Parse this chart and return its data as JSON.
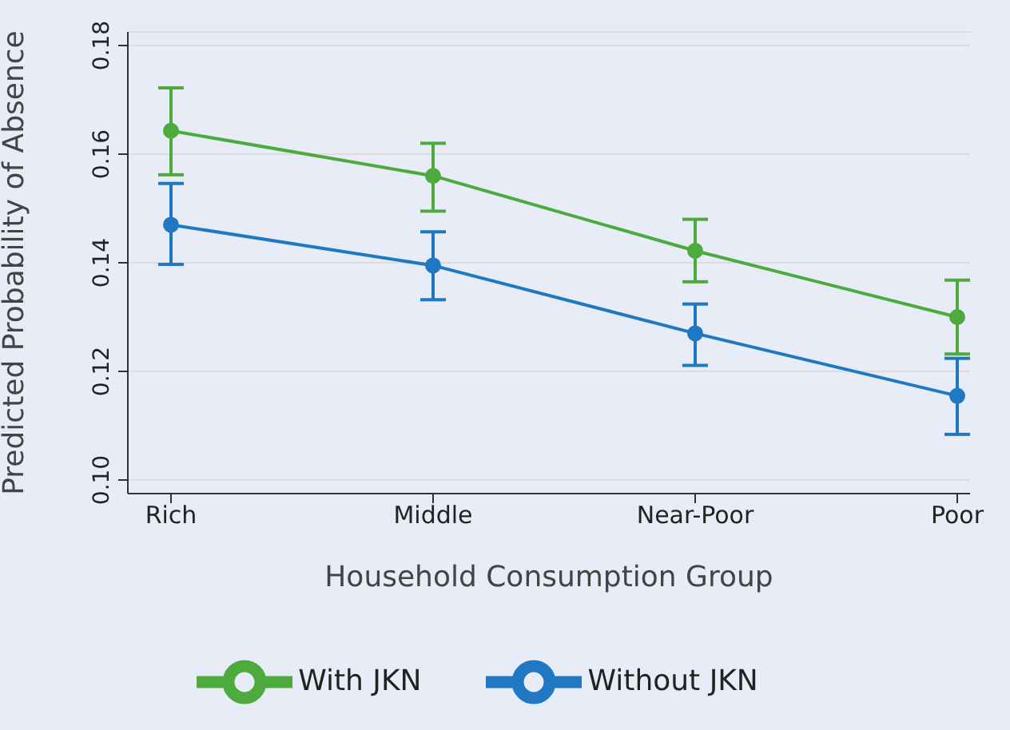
{
  "chart_data": {
    "type": "line",
    "xlabel": "Household Consumption Group",
    "ylabel": "Predicted Probability of Absence",
    "categories": [
      "Rich",
      "Middle",
      "Near-Poor",
      "Poor"
    ],
    "series": [
      {
        "name": "Without JKN",
        "color": "#1f78c1",
        "values": [
          0.147,
          0.1395,
          0.127,
          0.1155
        ],
        "errors": [
          [
            0.1397,
            0.1546
          ],
          [
            0.1332,
            0.1457
          ],
          [
            0.1211,
            0.1324
          ],
          [
            0.1084,
            0.1224
          ]
        ]
      },
      {
        "name": "With JKN",
        "color": "#4dab3e",
        "values": [
          0.1643,
          0.156,
          0.1422,
          0.13
        ],
        "errors": [
          [
            0.1562,
            0.1722
          ],
          [
            0.1495,
            0.162
          ],
          [
            0.1365,
            0.148
          ],
          [
            0.1232,
            0.1368
          ]
        ]
      }
    ],
    "ylim": [
      0.0975,
      0.1825
    ],
    "yticks": [
      {
        "value": 0.1,
        "label": "0.10"
      },
      {
        "value": 0.12,
        "label": "0.12"
      },
      {
        "value": 0.14,
        "label": "0.14"
      },
      {
        "value": 0.16,
        "label": "0.16"
      },
      {
        "value": 0.18,
        "label": "0.18"
      }
    ],
    "grid": "y",
    "legend": "bottom",
    "marker": "circle",
    "line_style": "solid"
  }
}
